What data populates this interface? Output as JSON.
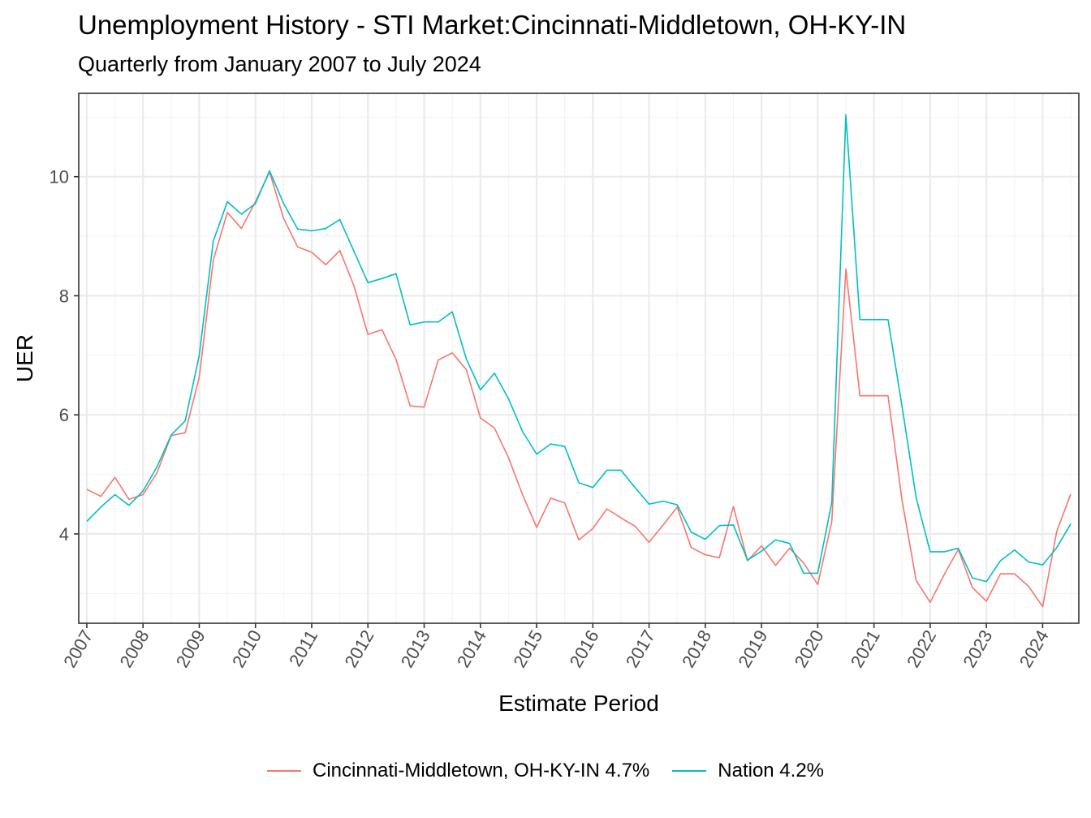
{
  "chart_data": {
    "type": "line",
    "title": "Unemployment History - STI Market:Cincinnati-Middletown, OH-KY-IN",
    "subtitle": "Quarterly from January 2007 to July 2024",
    "xlabel": "Estimate Period",
    "ylabel": "UER",
    "x_tick_labels": [
      "2007",
      "2008",
      "2009",
      "2010",
      "2011",
      "2012",
      "2013",
      "2014",
      "2015",
      "2016",
      "2017",
      "2018",
      "2019",
      "2020",
      "2021",
      "2022",
      "2023",
      "2024"
    ],
    "y_ticks": [
      4,
      6,
      8,
      10
    ],
    "xlim": [
      "2007-01",
      "2024-07"
    ],
    "ylim": [
      2.5,
      11.4
    ],
    "grid": true,
    "legend_position": "bottom",
    "x": [
      "2007-01",
      "2007-04",
      "2007-07",
      "2007-10",
      "2008-01",
      "2008-04",
      "2008-07",
      "2008-10",
      "2009-01",
      "2009-04",
      "2009-07",
      "2009-10",
      "2010-01",
      "2010-04",
      "2010-07",
      "2010-10",
      "2011-01",
      "2011-04",
      "2011-07",
      "2011-10",
      "2012-01",
      "2012-04",
      "2012-07",
      "2012-10",
      "2013-01",
      "2013-04",
      "2013-07",
      "2013-10",
      "2014-01",
      "2014-04",
      "2014-07",
      "2014-10",
      "2015-01",
      "2015-04",
      "2015-07",
      "2015-10",
      "2016-01",
      "2016-04",
      "2016-07",
      "2016-10",
      "2017-01",
      "2017-04",
      "2017-07",
      "2017-10",
      "2018-01",
      "2018-04",
      "2018-07",
      "2018-10",
      "2019-01",
      "2019-04",
      "2019-07",
      "2019-10",
      "2020-01",
      "2020-04",
      "2020-07",
      "2020-10",
      "2021-01",
      "2021-04",
      "2021-07",
      "2021-10",
      "2022-01",
      "2022-04",
      "2022-07",
      "2022-10",
      "2023-01",
      "2023-04",
      "2023-07",
      "2023-10",
      "2024-01",
      "2024-04",
      "2024-07"
    ],
    "series": [
      {
        "name": "Cincinnati-Middletown, OH-KY-IN 4.7%",
        "color": "#F8766D",
        "values": [
          4.75,
          4.63,
          4.95,
          4.58,
          4.66,
          5.03,
          5.65,
          5.7,
          6.63,
          8.6,
          9.4,
          9.13,
          9.58,
          10.08,
          9.3,
          8.82,
          8.73,
          8.52,
          8.76,
          8.17,
          7.35,
          7.43,
          6.93,
          6.15,
          6.13,
          6.92,
          7.04,
          6.76,
          5.95,
          5.78,
          5.28,
          4.66,
          4.11,
          4.6,
          4.52,
          3.9,
          4.09,
          4.42,
          4.27,
          4.13,
          3.86,
          4.15,
          4.45,
          3.77,
          3.65,
          3.6,
          4.46,
          3.55,
          3.8,
          3.47,
          3.76,
          3.51,
          3.15,
          4.21,
          8.45,
          6.32,
          6.32,
          6.32,
          4.56,
          3.22,
          2.85,
          3.32,
          3.74,
          3.1,
          2.87,
          3.33,
          3.33,
          3.12,
          2.78,
          4.04,
          4.67
        ]
      },
      {
        "name": "Nation 4.2%",
        "color": "#00BFC4",
        "values": [
          4.21,
          4.45,
          4.66,
          4.48,
          4.72,
          5.13,
          5.66,
          5.9,
          7.0,
          8.92,
          9.58,
          9.37,
          9.55,
          10.1,
          9.55,
          9.12,
          9.09,
          9.13,
          9.28,
          8.75,
          8.22,
          8.29,
          8.37,
          7.51,
          7.56,
          7.56,
          7.73,
          6.94,
          6.42,
          6.7,
          6.27,
          5.72,
          5.34,
          5.51,
          5.47,
          4.86,
          4.78,
          5.07,
          5.07,
          4.78,
          4.5,
          4.55,
          4.49,
          4.03,
          3.91,
          4.14,
          4.15,
          3.56,
          3.71,
          3.9,
          3.84,
          3.34,
          3.34,
          4.53,
          11.04,
          7.6,
          7.6,
          7.6,
          6.14,
          4.61,
          3.7,
          3.7,
          3.76,
          3.26,
          3.2,
          3.55,
          3.73,
          3.53,
          3.48,
          3.77,
          4.17
        ]
      }
    ]
  }
}
